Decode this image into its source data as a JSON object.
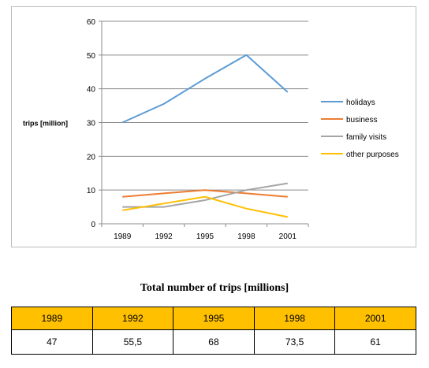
{
  "chart_data": {
    "type": "line",
    "x": [
      "1989",
      "1992",
      "1995",
      "1998",
      "2001"
    ],
    "series": [
      {
        "name": "holidays",
        "values": [
          30,
          35.5,
          43,
          50,
          39
        ],
        "color": "#5b9bd5"
      },
      {
        "name": "business",
        "values": [
          8,
          9,
          10,
          9,
          8
        ],
        "color": "#ed7d31"
      },
      {
        "name": "family visits",
        "values": [
          5,
          5,
          7,
          10,
          12
        ],
        "color": "#a5a5a5"
      },
      {
        "name": "other purposes",
        "values": [
          4,
          6,
          8,
          4.5,
          2
        ],
        "color": "#ffc000"
      }
    ],
    "ylabel": "trips [million]",
    "ylim": [
      0,
      60
    ],
    "yticks": [
      "0",
      "10",
      "20",
      "30",
      "40",
      "50",
      "60"
    ],
    "grid": true,
    "legend": "right"
  },
  "table": {
    "title": "Total number of trips [millions]",
    "headers": [
      "1989",
      "1992",
      "1995",
      "1998",
      "2001"
    ],
    "values": [
      "47",
      "55,5",
      "68",
      "73,5",
      "61"
    ],
    "header_color": "#ffc000"
  }
}
